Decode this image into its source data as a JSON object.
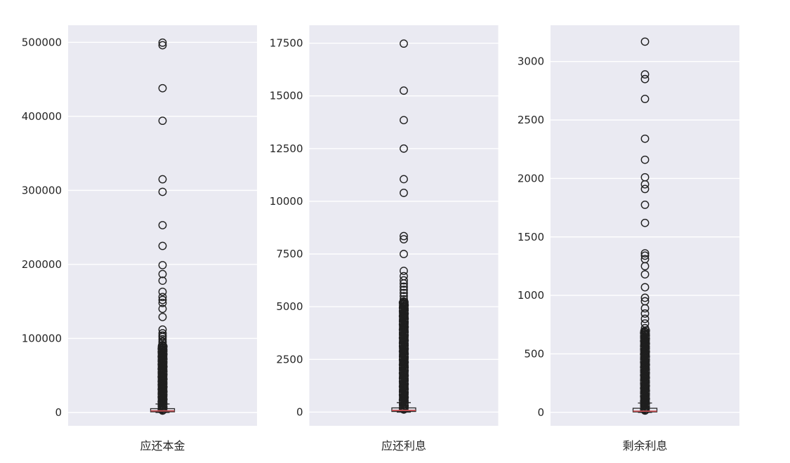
{
  "figure": {
    "background": "#ffffff",
    "panel_background": "#eaeaf2",
    "grid_color": "#ffffff",
    "tick_color": "#262626",
    "box_color": "#262626",
    "median_color": "#c44e52",
    "outlier_color": "#1f1f1f"
  },
  "chart_data": [
    {
      "type": "box",
      "category": "应还本金",
      "ylim": [
        -18000,
        523000
      ],
      "yticks": [
        0,
        100000,
        200000,
        300000,
        400000,
        500000
      ],
      "grid": true,
      "box": {
        "q1": 900,
        "median": 2200,
        "q3": 5200,
        "whisker_low": 0,
        "whisker_high": 11500
      },
      "outliers_dense": {
        "min": 2500,
        "max": 90000,
        "count": 110
      },
      "outliers": [
        91000,
        94000,
        96000,
        99000,
        102000,
        104000,
        107000,
        112000,
        129000,
        140000,
        148000,
        152000,
        156000,
        163000,
        178000,
        187000,
        199000,
        225000,
        253000,
        298000,
        315000,
        394000,
        438000,
        496000,
        499500
      ]
    },
    {
      "type": "box",
      "category": "应还利息",
      "ylim": [
        -650,
        18350
      ],
      "yticks": [
        0,
        2500,
        5000,
        7500,
        10000,
        12500,
        15000,
        17500
      ],
      "grid": true,
      "box": {
        "q1": 30,
        "median": 80,
        "q3": 200,
        "whisker_low": 0,
        "whisker_high": 450
      },
      "outliers_dense": {
        "min": 120,
        "max": 5250,
        "count": 170
      },
      "outliers": [
        5350,
        5500,
        5650,
        5800,
        5950,
        6100,
        6250,
        6450,
        6700,
        7500,
        8200,
        8350,
        10400,
        11050,
        12500,
        13850,
        15250,
        17480
      ]
    },
    {
      "type": "box",
      "category": "剩余利息",
      "ylim": [
        -115,
        3310
      ],
      "yticks": [
        0,
        500,
        1000,
        1500,
        2000,
        2500,
        3000
      ],
      "grid": true,
      "box": {
        "q1": 4,
        "median": 10,
        "q3": 35,
        "whisker_low": 0,
        "whisker_high": 80
      },
      "outliers_dense": {
        "min": 15,
        "max": 700,
        "count": 130
      },
      "outliers": [
        720,
        760,
        800,
        845,
        890,
        950,
        980,
        1070,
        1180,
        1250,
        1310,
        1340,
        1360,
        1620,
        1775,
        1910,
        1950,
        2010,
        2160,
        2340,
        2680,
        2850,
        2890,
        3170
      ]
    }
  ]
}
